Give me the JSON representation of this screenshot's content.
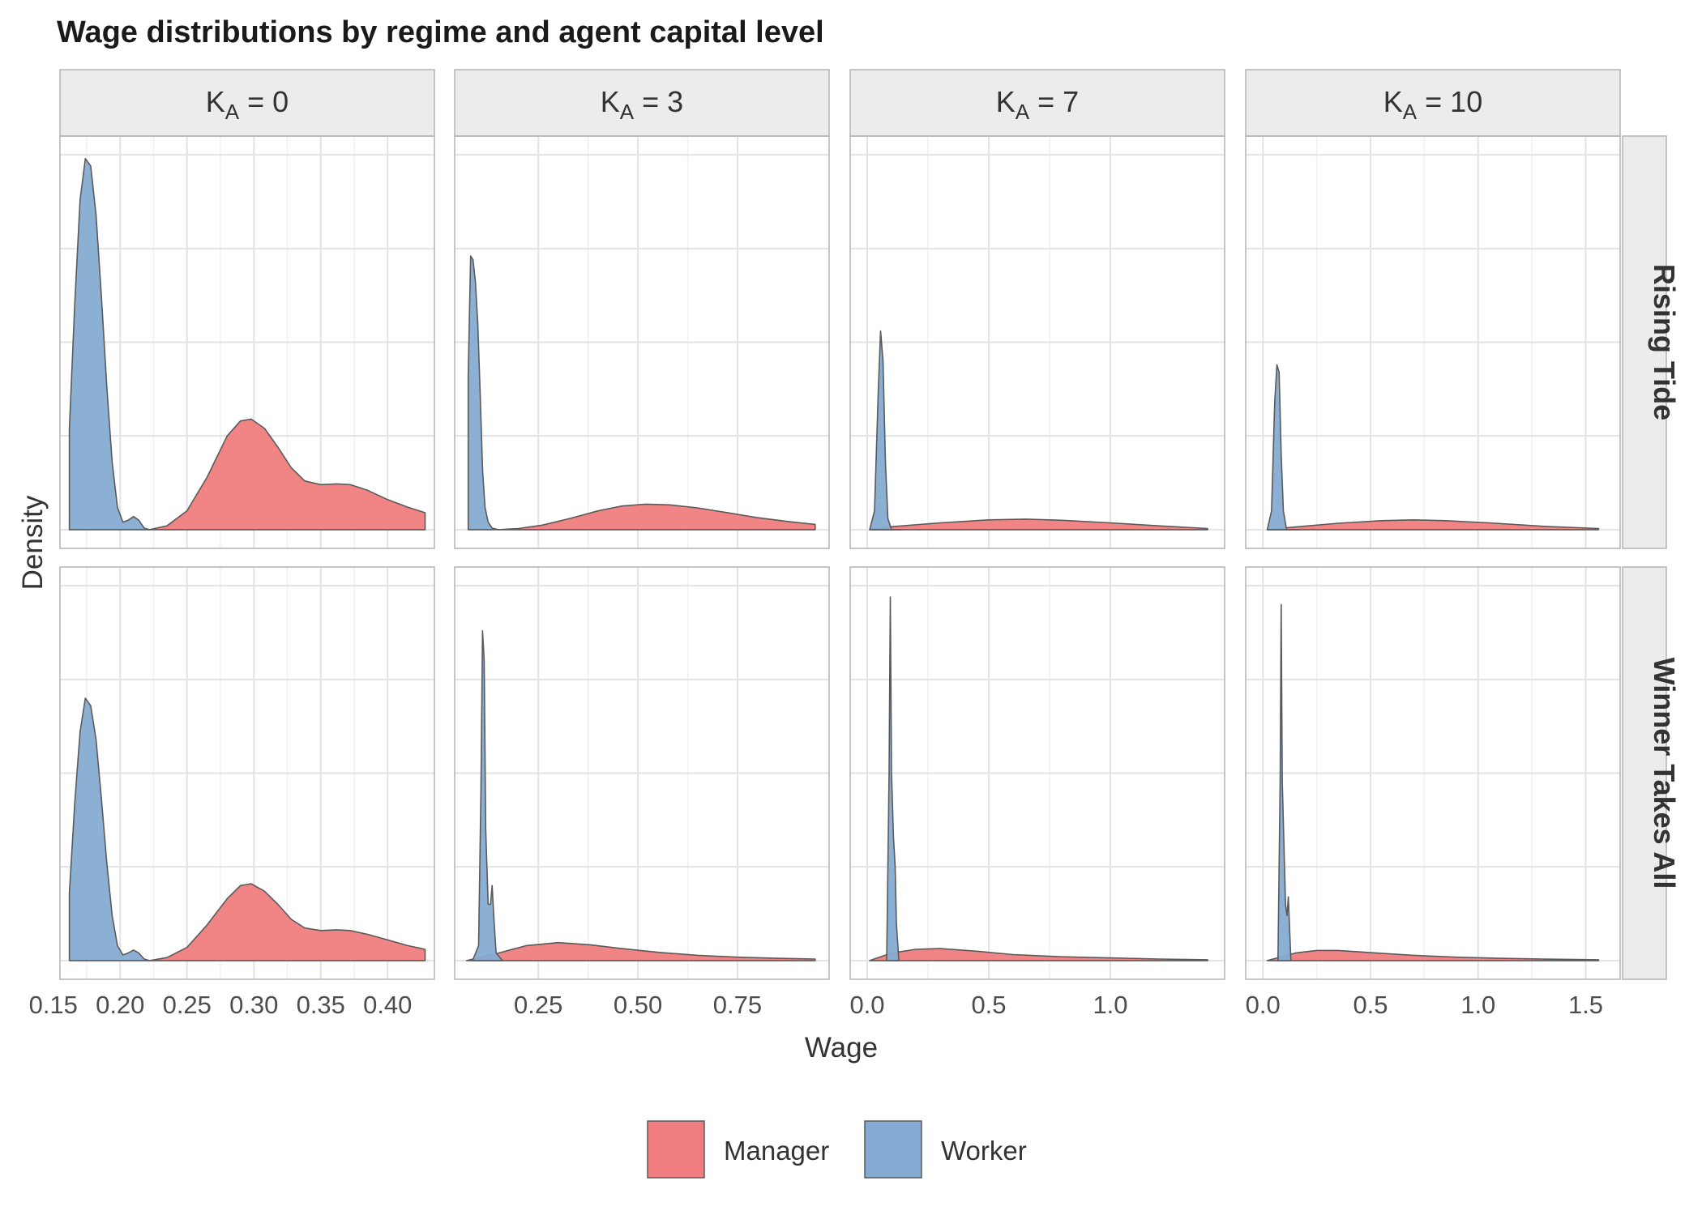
{
  "chart_data": {
    "type": "density",
    "title": "Wage distributions by regime and agent capital level",
    "xlabel": "Wage",
    "ylabel": "Density",
    "facet_columns": [
      {
        "label_base": "K",
        "label_sub": "A",
        "label_rest": " = 0"
      },
      {
        "label_base": "K",
        "label_sub": "A",
        "label_rest": " = 3"
      },
      {
        "label_base": "K",
        "label_sub": "A",
        "label_rest": " = 7"
      },
      {
        "label_base": "K",
        "label_sub": "A",
        "label_rest": " = 10"
      }
    ],
    "facet_rows": [
      "Rising Tide",
      "Winner Takes All"
    ],
    "x_axes": [
      {
        "xlim": [
          0.155,
          0.435
        ],
        "ticks": [
          "0.15",
          "0.20",
          "0.25",
          "0.30",
          "0.35",
          "0.40"
        ],
        "tick_values": [
          0.15,
          0.2,
          0.25,
          0.3,
          0.35,
          0.4
        ]
      },
      {
        "xlim": [
          0.04,
          0.98
        ],
        "ticks": [
          "0.25",
          "0.50",
          "0.75"
        ],
        "tick_values": [
          0.25,
          0.5,
          0.75
        ]
      },
      {
        "xlim": [
          -0.07,
          1.47
        ],
        "ticks": [
          "0.0",
          "0.5",
          "1.0"
        ],
        "tick_values": [
          0.0,
          0.5,
          1.0
        ]
      },
      {
        "xlim": [
          -0.08,
          1.66
        ],
        "ticks": [
          "0.0",
          "0.5",
          "1.0",
          "1.5"
        ],
        "tick_values": [
          0.0,
          0.5,
          1.0,
          1.5
        ]
      }
    ],
    "grid": true,
    "legend": {
      "position": "bottom",
      "entries": [
        {
          "name": "Manager",
          "color": "#F07E80"
        },
        {
          "name": "Worker",
          "color": "#86ABD2"
        }
      ]
    },
    "colors": {
      "Manager": "#F07E80",
      "Worker": "#86ABD2",
      "outline": "#5a5a5a",
      "strip_bg": "#ececec",
      "grid": "#e3e3e3",
      "panel_border": "#b3b3b3"
    },
    "panels": [
      {
        "row": 0,
        "col": 0,
        "ylim": [
          -0.05,
          1.05
        ],
        "Worker": [
          [
            0.162,
            0.27
          ],
          [
            0.166,
            0.6
          ],
          [
            0.17,
            0.88
          ],
          [
            0.174,
            0.99
          ],
          [
            0.178,
            0.97
          ],
          [
            0.182,
            0.84
          ],
          [
            0.186,
            0.62
          ],
          [
            0.19,
            0.38
          ],
          [
            0.194,
            0.18
          ],
          [
            0.198,
            0.06
          ],
          [
            0.202,
            0.02
          ],
          [
            0.206,
            0.025
          ],
          [
            0.21,
            0.035
          ],
          [
            0.214,
            0.025
          ],
          [
            0.218,
            0.004
          ],
          [
            0.222,
            0.0
          ]
        ],
        "Manager": [
          [
            0.222,
            0.0
          ],
          [
            0.235,
            0.01
          ],
          [
            0.25,
            0.05
          ],
          [
            0.265,
            0.14
          ],
          [
            0.28,
            0.25
          ],
          [
            0.29,
            0.29
          ],
          [
            0.298,
            0.295
          ],
          [
            0.308,
            0.27
          ],
          [
            0.318,
            0.22
          ],
          [
            0.328,
            0.165
          ],
          [
            0.338,
            0.13
          ],
          [
            0.35,
            0.12
          ],
          [
            0.362,
            0.122
          ],
          [
            0.372,
            0.12
          ],
          [
            0.385,
            0.105
          ],
          [
            0.4,
            0.08
          ],
          [
            0.415,
            0.06
          ],
          [
            0.428,
            0.045
          ]
        ]
      },
      {
        "row": 0,
        "col": 1,
        "ylim": [
          -0.05,
          1.05
        ],
        "Worker": [
          [
            0.074,
            0.41
          ],
          [
            0.08,
            0.73
          ],
          [
            0.086,
            0.72
          ],
          [
            0.092,
            0.66
          ],
          [
            0.098,
            0.55
          ],
          [
            0.104,
            0.36
          ],
          [
            0.11,
            0.16
          ],
          [
            0.116,
            0.06
          ],
          [
            0.124,
            0.02
          ],
          [
            0.134,
            0.004
          ],
          [
            0.15,
            0.0
          ]
        ],
        "Manager": [
          [
            0.15,
            0.0
          ],
          [
            0.2,
            0.003
          ],
          [
            0.26,
            0.012
          ],
          [
            0.33,
            0.03
          ],
          [
            0.4,
            0.05
          ],
          [
            0.46,
            0.063
          ],
          [
            0.52,
            0.068
          ],
          [
            0.58,
            0.066
          ],
          [
            0.65,
            0.058
          ],
          [
            0.72,
            0.046
          ],
          [
            0.8,
            0.032
          ],
          [
            0.88,
            0.021
          ],
          [
            0.945,
            0.014
          ]
        ]
      },
      {
        "row": 0,
        "col": 2,
        "ylim": [
          -0.05,
          1.05
        ],
        "Worker": [
          [
            0.01,
            0.0
          ],
          [
            0.03,
            0.05
          ],
          [
            0.045,
            0.36
          ],
          [
            0.055,
            0.53
          ],
          [
            0.065,
            0.45
          ],
          [
            0.075,
            0.18
          ],
          [
            0.085,
            0.03
          ],
          [
            0.1,
            0.0
          ],
          [
            0.14,
            0.0
          ]
        ],
        "Manager": [
          [
            0.01,
            0.0
          ],
          [
            0.1,
            0.008
          ],
          [
            0.3,
            0.018
          ],
          [
            0.5,
            0.026
          ],
          [
            0.65,
            0.028
          ],
          [
            0.8,
            0.025
          ],
          [
            1.0,
            0.018
          ],
          [
            1.2,
            0.01
          ],
          [
            1.4,
            0.003
          ]
        ]
      },
      {
        "row": 0,
        "col": 3,
        "ylim": [
          -0.05,
          1.05
        ],
        "Worker": [
          [
            0.02,
            0.0
          ],
          [
            0.04,
            0.05
          ],
          [
            0.055,
            0.34
          ],
          [
            0.065,
            0.44
          ],
          [
            0.075,
            0.42
          ],
          [
            0.085,
            0.2
          ],
          [
            0.095,
            0.05
          ],
          [
            0.11,
            0.0
          ],
          [
            0.17,
            0.0
          ]
        ],
        "Manager": [
          [
            0.02,
            0.0
          ],
          [
            0.15,
            0.007
          ],
          [
            0.35,
            0.017
          ],
          [
            0.55,
            0.024
          ],
          [
            0.7,
            0.026
          ],
          [
            0.85,
            0.024
          ],
          [
            1.05,
            0.018
          ],
          [
            1.3,
            0.009
          ],
          [
            1.56,
            0.003
          ]
        ]
      },
      {
        "row": 1,
        "col": 0,
        "ylim": [
          -0.05,
          1.05
        ],
        "Worker": [
          [
            0.162,
            0.18
          ],
          [
            0.166,
            0.42
          ],
          [
            0.17,
            0.61
          ],
          [
            0.174,
            0.7
          ],
          [
            0.178,
            0.68
          ],
          [
            0.182,
            0.59
          ],
          [
            0.186,
            0.43
          ],
          [
            0.19,
            0.26
          ],
          [
            0.194,
            0.12
          ],
          [
            0.198,
            0.04
          ],
          [
            0.202,
            0.015
          ],
          [
            0.206,
            0.02
          ],
          [
            0.21,
            0.028
          ],
          [
            0.214,
            0.02
          ],
          [
            0.218,
            0.004
          ],
          [
            0.222,
            0.0
          ]
        ],
        "Manager": [
          [
            0.222,
            0.0
          ],
          [
            0.235,
            0.008
          ],
          [
            0.25,
            0.035
          ],
          [
            0.265,
            0.095
          ],
          [
            0.28,
            0.165
          ],
          [
            0.29,
            0.2
          ],
          [
            0.298,
            0.205
          ],
          [
            0.308,
            0.185
          ],
          [
            0.318,
            0.15
          ],
          [
            0.328,
            0.11
          ],
          [
            0.338,
            0.087
          ],
          [
            0.35,
            0.08
          ],
          [
            0.362,
            0.082
          ],
          [
            0.372,
            0.08
          ],
          [
            0.385,
            0.07
          ],
          [
            0.4,
            0.055
          ],
          [
            0.415,
            0.04
          ],
          [
            0.428,
            0.03
          ]
        ]
      },
      {
        "row": 1,
        "col": 1,
        "ylim": [
          -0.05,
          1.05
        ],
        "Worker": [
          [
            0.085,
            0.0
          ],
          [
            0.1,
            0.04
          ],
          [
            0.106,
            0.45
          ],
          [
            0.11,
            0.88
          ],
          [
            0.114,
            0.8
          ],
          [
            0.118,
            0.35
          ],
          [
            0.124,
            0.15
          ],
          [
            0.13,
            0.15
          ],
          [
            0.134,
            0.2
          ],
          [
            0.138,
            0.12
          ],
          [
            0.144,
            0.02
          ],
          [
            0.16,
            0.0
          ]
        ],
        "Manager": [
          [
            0.07,
            0.0
          ],
          [
            0.15,
            0.02
          ],
          [
            0.22,
            0.04
          ],
          [
            0.3,
            0.048
          ],
          [
            0.38,
            0.042
          ],
          [
            0.46,
            0.032
          ],
          [
            0.55,
            0.022
          ],
          [
            0.65,
            0.014
          ],
          [
            0.75,
            0.009
          ],
          [
            0.85,
            0.006
          ],
          [
            0.945,
            0.004
          ]
        ]
      },
      {
        "row": 1,
        "col": 2,
        "ylim": [
          -0.05,
          1.05
        ],
        "Worker": [
          [
            0.08,
            0.0
          ],
          [
            0.09,
            0.5
          ],
          [
            0.095,
            0.97
          ],
          [
            0.1,
            0.5
          ],
          [
            0.108,
            0.33
          ],
          [
            0.115,
            0.25
          ],
          [
            0.12,
            0.1
          ],
          [
            0.125,
            0.05
          ],
          [
            0.13,
            0.0
          ]
        ],
        "Manager": [
          [
            0.01,
            0.0
          ],
          [
            0.1,
            0.02
          ],
          [
            0.2,
            0.03
          ],
          [
            0.3,
            0.032
          ],
          [
            0.45,
            0.025
          ],
          [
            0.6,
            0.016
          ],
          [
            0.8,
            0.01
          ],
          [
            1.0,
            0.007
          ],
          [
            1.2,
            0.004
          ],
          [
            1.4,
            0.002
          ]
        ]
      },
      {
        "row": 1,
        "col": 3,
        "ylim": [
          -0.05,
          1.05
        ],
        "Worker": [
          [
            0.07,
            0.0
          ],
          [
            0.08,
            0.48
          ],
          [
            0.085,
            0.95
          ],
          [
            0.09,
            0.48
          ],
          [
            0.098,
            0.3
          ],
          [
            0.105,
            0.15
          ],
          [
            0.112,
            0.12
          ],
          [
            0.118,
            0.17
          ],
          [
            0.123,
            0.1
          ],
          [
            0.13,
            0.0
          ]
        ],
        "Manager": [
          [
            0.02,
            0.0
          ],
          [
            0.15,
            0.02
          ],
          [
            0.25,
            0.027
          ],
          [
            0.35,
            0.027
          ],
          [
            0.5,
            0.021
          ],
          [
            0.7,
            0.014
          ],
          [
            0.9,
            0.009
          ],
          [
            1.1,
            0.006
          ],
          [
            1.3,
            0.004
          ],
          [
            1.56,
            0.002
          ]
        ]
      }
    ]
  }
}
